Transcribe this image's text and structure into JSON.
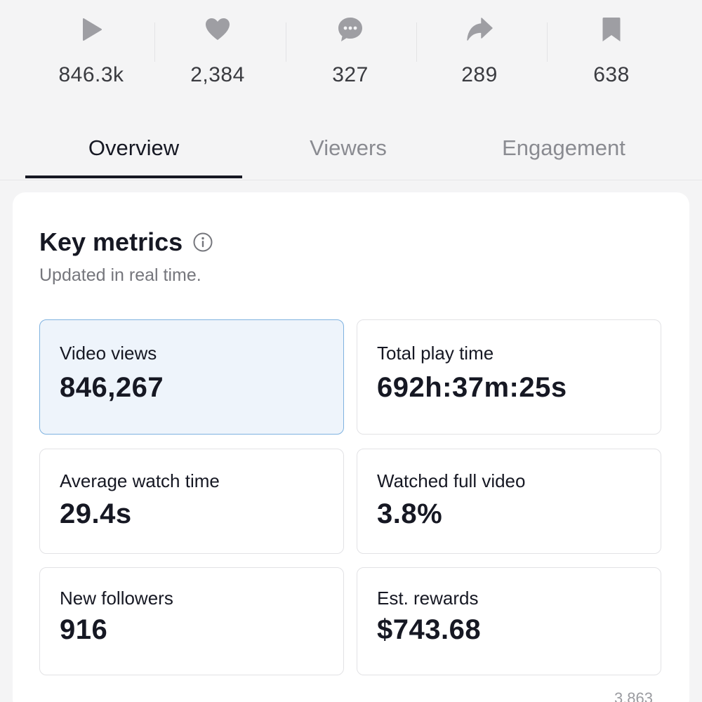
{
  "stats": [
    {
      "icon": "play-icon",
      "value": "846.3k"
    },
    {
      "icon": "heart-icon",
      "value": "2,384"
    },
    {
      "icon": "comment-icon",
      "value": "327"
    },
    {
      "icon": "share-icon",
      "value": "289"
    },
    {
      "icon": "bookmark-icon",
      "value": "638"
    }
  ],
  "tabs": [
    {
      "label": "Overview",
      "active": true
    },
    {
      "label": "Viewers",
      "active": false
    },
    {
      "label": "Engagement",
      "active": false
    }
  ],
  "key_metrics": {
    "title": "Key metrics",
    "subtitle": "Updated in real time.",
    "info_icon": "info-icon",
    "items": [
      {
        "label": "Video views",
        "value": "846,267",
        "selected": true
      },
      {
        "label": "Total play time",
        "value": "692h:37m:25s",
        "selected": false
      },
      {
        "label": "Average watch time",
        "value": "29.4s",
        "selected": false
      },
      {
        "label": "Watched full video",
        "value": "3.8%",
        "selected": false
      },
      {
        "label": "New followers",
        "value": "916",
        "selected": false
      },
      {
        "label": "Est. rewards",
        "value": "$743.68",
        "selected": false
      }
    ]
  },
  "bottom_number": "3,863",
  "colors": {
    "icon_gray": "#9e9ea3",
    "selected_bg": "#eef4fb",
    "selected_border": "#7fb2e0",
    "text_primary": "#161823"
  }
}
